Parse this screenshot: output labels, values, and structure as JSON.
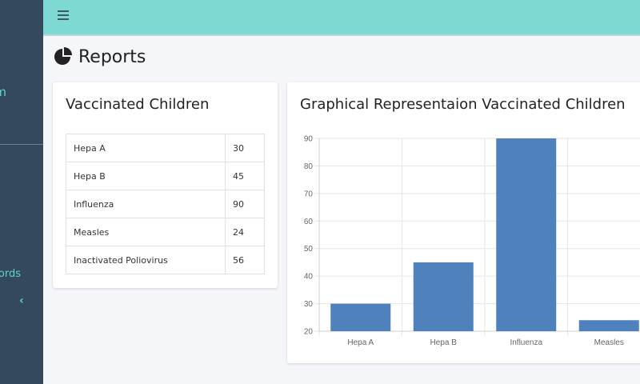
{
  "sidebar": {
    "fragment_1": "m",
    "fragment_records": "ords",
    "collapse_icon": "chevron-left"
  },
  "topbar": {
    "menu_icon": "hamburger"
  },
  "page": {
    "title": "Reports",
    "title_icon": "pie-chart"
  },
  "table_card": {
    "title": "Vaccinated Children",
    "rows": [
      {
        "name": "Hepa A",
        "value": "30"
      },
      {
        "name": "Hepa B",
        "value": "45"
      },
      {
        "name": "Influenza",
        "value": "90"
      },
      {
        "name": "Measles",
        "value": "24"
      },
      {
        "name": "Inactivated Poliovirus",
        "value": "56"
      }
    ]
  },
  "chart_card": {
    "title": "Graphical Representaion Vaccinated Children"
  },
  "colors": {
    "bar": "#4f81bd",
    "topbar": "#7ed9d5",
    "sidebar": "#34495e",
    "accent": "#5fd4c8"
  },
  "chart_data": {
    "type": "bar",
    "categories": [
      "Hepa A",
      "Hepa B",
      "Influenza",
      "Measles"
    ],
    "values": [
      30,
      45,
      90,
      24
    ],
    "ylim": [
      20,
      90
    ],
    "yticks": [
      20,
      30,
      40,
      50,
      60,
      70,
      80,
      90
    ],
    "grid": true
  }
}
